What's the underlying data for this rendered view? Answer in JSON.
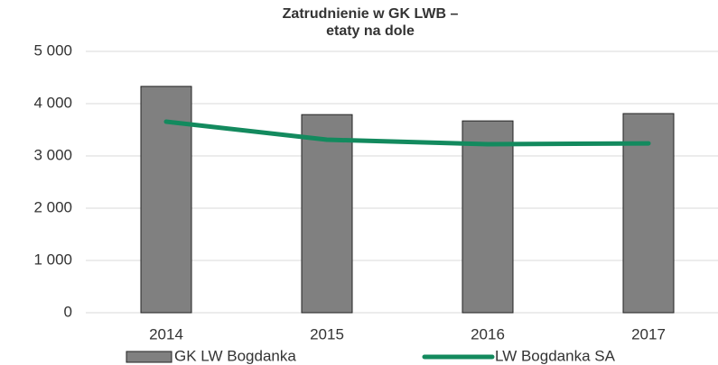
{
  "chart_data": {
    "type": "bar_line",
    "title": "Zatrudnienie w GK LWB – etaty na dole",
    "categories": [
      "2014",
      "2015",
      "2016",
      "2017"
    ],
    "series": [
      {
        "name": "GK LW Bogdanka",
        "type": "bar",
        "color": "#808080",
        "values": [
          4330,
          3790,
          3670,
          3810
        ]
      },
      {
        "name": "LW Bogdanka SA",
        "type": "line",
        "color": "#138a5e",
        "values": [
          3655,
          3310,
          3225,
          3240
        ]
      }
    ],
    "ylim": [
      0,
      5000
    ],
    "yticks": [
      0,
      {
        "value": 1000,
        "label": "1 000"
      },
      {
        "value": 2000,
        "label": "2 000"
      },
      {
        "value": 3000,
        "label": "3 000"
      },
      {
        "value": 4000,
        "label": "4 000"
      },
      {
        "value": 5000,
        "label": "5 000"
      }
    ],
    "grid": true
  }
}
